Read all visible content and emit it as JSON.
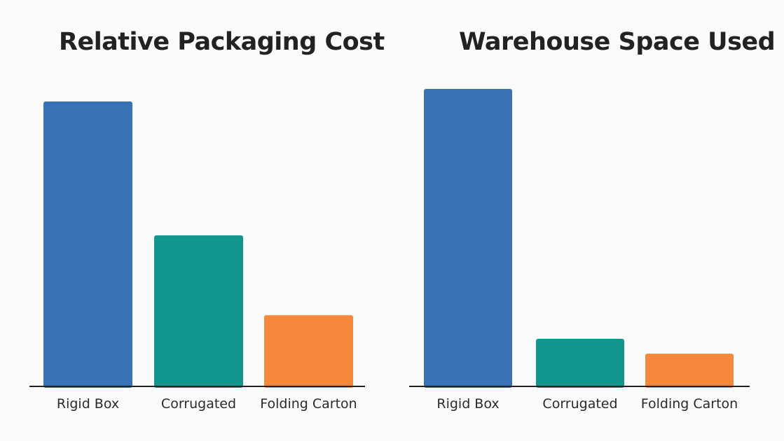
{
  "chart_data": [
    {
      "type": "bar",
      "title": "Relative Packaging Cost",
      "categories": [
        "Rigid Box",
        "Corrugated",
        "Folding Carton"
      ],
      "values": [
        100,
        53,
        25
      ],
      "colors": [
        "#3a72b8",
        "#12958d",
        "#f5883a"
      ],
      "xlabel": "",
      "ylabel": "",
      "ylim": [
        0,
        100
      ],
      "grid": false,
      "legend": "none"
    },
    {
      "type": "bar",
      "title": "Warehouse Space Used",
      "categories": [
        "Rigid Box",
        "Corrugated",
        "Folding Carton"
      ],
      "values": [
        100,
        16,
        11
      ],
      "colors": [
        "#3a72b8",
        "#12958d",
        "#f5883a"
      ],
      "xlabel": "",
      "ylabel": "",
      "ylim": [
        0,
        100
      ],
      "grid": false,
      "legend": "none"
    }
  ]
}
